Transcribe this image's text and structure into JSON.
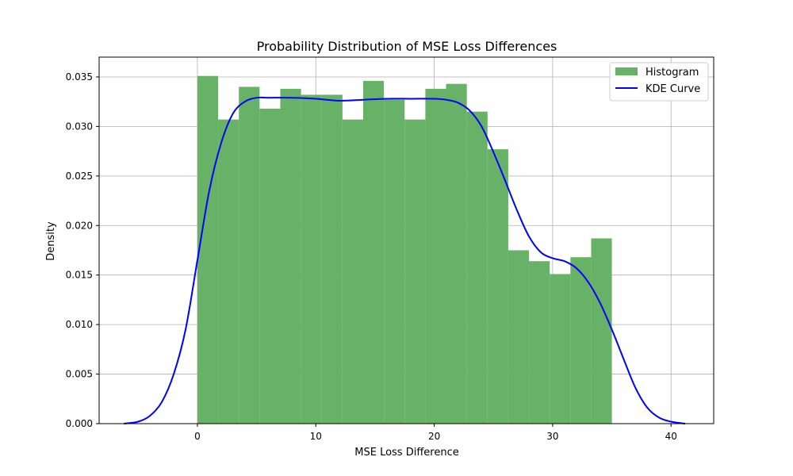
{
  "chart_data": {
    "type": "bar",
    "title": "Probability Distribution of MSE Loss Differences",
    "xlabel": "MSE Loss Difference",
    "ylabel": "Density",
    "xlim": [
      -8.3,
      43.6
    ],
    "ylim": [
      0,
      0.037
    ],
    "x_ticks": [
      0,
      10,
      20,
      30,
      40
    ],
    "x_tick_labels": [
      "0",
      "10",
      "20",
      "30",
      "40"
    ],
    "y_ticks": [
      0,
      0.005,
      0.01,
      0.015,
      0.02,
      0.025,
      0.03,
      0.035
    ],
    "y_tick_labels": [
      "0.000",
      "0.005",
      "0.010",
      "0.015",
      "0.020",
      "0.025",
      "0.030",
      "0.035"
    ],
    "grid": true,
    "legend_position": "top-right",
    "series": [
      {
        "name": "Histogram",
        "kind": "histogram",
        "color": "#67b267",
        "bin_edges": [
          0,
          1.75,
          3.5,
          5.25,
          7,
          8.75,
          10.5,
          12.25,
          14,
          15.75,
          17.5,
          19.25,
          21,
          22.75,
          24.5,
          26.25,
          28,
          29.75,
          31.5,
          33.25,
          35
        ],
        "values": [
          0.0351,
          0.0307,
          0.034,
          0.0318,
          0.0338,
          0.0332,
          0.0332,
          0.0307,
          0.0346,
          0.0327,
          0.0307,
          0.0338,
          0.0343,
          0.0315,
          0.0277,
          0.0175,
          0.0164,
          0.0151,
          0.0168,
          0.0187
        ]
      },
      {
        "name": "KDE Curve",
        "kind": "line",
        "color": "#0000ff",
        "x": [
          -6.2,
          -5,
          -4,
          -3,
          -2,
          -1,
          0,
          1,
          2,
          3,
          4,
          5,
          6,
          8,
          10,
          12,
          14,
          16,
          18,
          20,
          21,
          22,
          23,
          24,
          25,
          26,
          27,
          28,
          29,
          30,
          31,
          32,
          33,
          34,
          35,
          36,
          37,
          38,
          39,
          40,
          41.2
        ],
        "y": [
          0.0,
          0.0002,
          0.0008,
          0.0022,
          0.005,
          0.0095,
          0.0165,
          0.0235,
          0.0283,
          0.0313,
          0.0325,
          0.0329,
          0.0329,
          0.0329,
          0.0328,
          0.0326,
          0.0327,
          0.0328,
          0.0328,
          0.0328,
          0.0327,
          0.0324,
          0.0316,
          0.03,
          0.0274,
          0.0245,
          0.0215,
          0.0189,
          0.0173,
          0.0167,
          0.0164,
          0.0157,
          0.0143,
          0.0122,
          0.0095,
          0.0065,
          0.0036,
          0.0016,
          0.0006,
          0.0002,
          0.0
        ]
      }
    ]
  }
}
